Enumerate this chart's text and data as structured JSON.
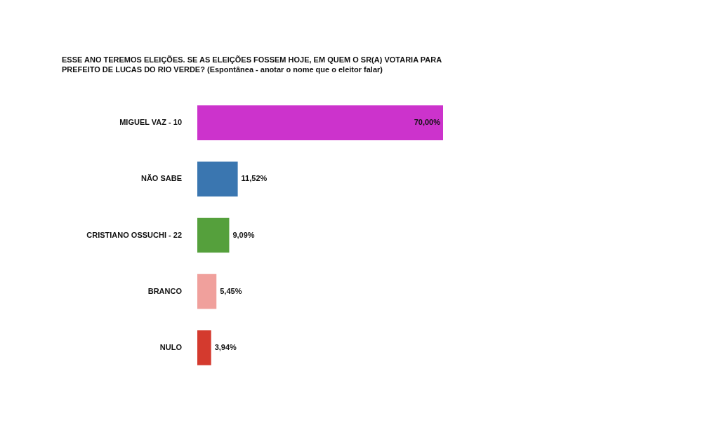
{
  "chart_data": {
    "type": "bar",
    "orientation": "horizontal",
    "title": "ESSE ANO TEREMOS ELEIÇÕES. SE AS ELEIÇÕES FOSSEM HOJE, EM QUEM O SR(A) VOTARIA PARA PREFEITO DE LUCAS DO RIO VERDE? (Espontânea - anotar o nome que o eleitor falar)",
    "categories": [
      "MIGUEL VAZ - 10",
      "NÃO SABE",
      "CRISTIANO OSSUCHI - 22",
      "BRANCO",
      "NULO"
    ],
    "values": [
      70.0,
      11.52,
      9.09,
      5.45,
      3.94
    ],
    "colors": [
      "#cc33cc",
      "#3a76b0",
      "#55a03c",
      "#f0a09c",
      "#d43a2e"
    ],
    "value_labels": [
      "70,00%",
      "11,52%",
      "9,09%",
      "5,45%",
      "3,94%"
    ]
  }
}
